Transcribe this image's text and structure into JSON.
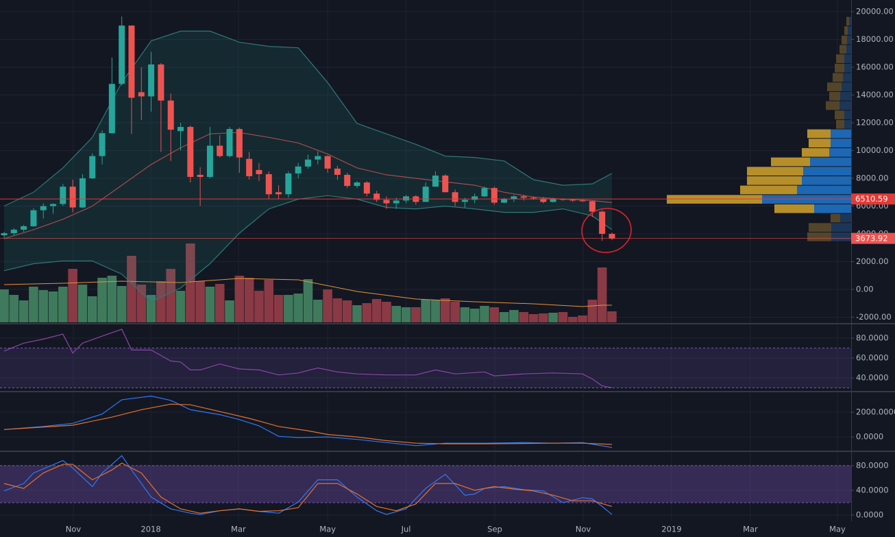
{
  "chart_data": [
    {
      "type": "candlestick",
      "x": [
        0,
        1,
        2,
        3,
        4,
        5,
        6,
        7,
        8,
        9,
        10,
        11,
        12,
        13,
        14,
        15,
        16,
        17,
        18,
        19,
        20,
        21,
        22,
        23,
        24,
        25,
        26,
        27,
        28,
        29,
        30,
        31,
        32,
        33,
        34,
        35,
        36,
        37,
        38,
        39,
        40,
        41,
        42,
        43,
        44,
        45,
        46,
        47,
        48,
        49,
        50,
        51,
        52,
        53,
        54,
        55,
        56,
        57,
        58,
        59,
        60,
        61,
        62
      ],
      "open": [
        3900,
        4050,
        4300,
        4550,
        5700,
        6000,
        6150,
        7400,
        5900,
        8000,
        9600,
        11250,
        14800,
        19000,
        14200,
        13900,
        16200,
        13600,
        11400,
        11700,
        8250,
        8100,
        10350,
        9600,
        11550,
        9400,
        8600,
        8300,
        7000,
        6850,
        8350,
        8850,
        9350,
        9600,
        8700,
        8250,
        7450,
        7700,
        6900,
        6450,
        6200,
        6400,
        6700,
        6300,
        7400,
        8200,
        7000,
        6300,
        6450,
        6700,
        7300,
        6250,
        6500,
        6700,
        6600,
        6550,
        6300,
        6500,
        6450,
        6400,
        6350,
        5600,
        4000
      ],
      "high": [
        4150,
        4400,
        4650,
        5850,
        6200,
        6200,
        7600,
        7900,
        8300,
        9800,
        11450,
        16700,
        19650,
        19000,
        16000,
        17100,
        16300,
        14100,
        12000,
        11800,
        8800,
        11700,
        11100,
        11700,
        11650,
        9900,
        9100,
        8500,
        7500,
        8500,
        9100,
        9700,
        9950,
        9650,
        8900,
        8400,
        7800,
        7800,
        7100,
        6700,
        6600,
        6800,
        6800,
        7700,
        8500,
        8300,
        7200,
        6600,
        6900,
        7400,
        7400,
        6600,
        6800,
        6800,
        6700,
        6650,
        6600,
        6550,
        6500,
        6500,
        6400,
        5700,
        4100
      ],
      "low": [
        3700,
        3900,
        4150,
        4500,
        5100,
        5450,
        6000,
        5550,
        5850,
        7950,
        9000,
        11200,
        14700,
        11200,
        12200,
        12800,
        9900,
        9250,
        10000,
        7700,
        6000,
        8000,
        9500,
        9500,
        8400,
        7900,
        7800,
        6500,
        6500,
        6600,
        8000,
        8700,
        9000,
        8400,
        7900,
        7300,
        7300,
        6700,
        6300,
        5800,
        5800,
        6200,
        6100,
        6300,
        7400,
        7000,
        6000,
        5900,
        6200,
        6650,
        6100,
        6200,
        6300,
        6400,
        6450,
        6200,
        6250,
        6400,
        6300,
        6300,
        5200,
        3500,
        3550
      ],
      "close": [
        4050,
        4300,
        4550,
        5700,
        6000,
        6150,
        7400,
        5900,
        8000,
        9600,
        11250,
        14800,
        19000,
        13800,
        13900,
        16200,
        13600,
        11500,
        11700,
        8100,
        8100,
        10350,
        9600,
        11550,
        9500,
        8150,
        8300,
        6850,
        6850,
        8350,
        8850,
        9350,
        9600,
        8700,
        8250,
        7450,
        7700,
        6900,
        6450,
        6200,
        6400,
        6700,
        6300,
        7400,
        8200,
        7000,
        6300,
        6450,
        6700,
        7300,
        6250,
        6500,
        6700,
        6600,
        6550,
        6300,
        6500,
        6450,
        6400,
        6350,
        5600,
        4000,
        3673.92
      ],
      "up_color": "#26a69a",
      "down_color": "#ef5350",
      "band_fill": "rgba(38,166,154,0.13)",
      "series": [
        {
          "color": "#2b7a78",
          "x": [
            0,
            3,
            6,
            9,
            12,
            15,
            18,
            21,
            24,
            27,
            30,
            33,
            36,
            39,
            42,
            45,
            48,
            51,
            54,
            57,
            60,
            62
          ],
          "values": [
            6000,
            7000,
            8750,
            10950,
            14900,
            17900,
            18600,
            18600,
            17800,
            17500,
            17400,
            14900,
            11950,
            11200,
            10450,
            9600,
            9500,
            9250,
            7900,
            7500,
            7600,
            8350
          ]
        },
        {
          "color": "#a84a4c",
          "x": [
            0,
            3,
            6,
            9,
            12,
            15,
            18,
            21,
            24,
            27,
            30,
            33,
            36,
            39,
            42,
            45,
            48,
            51,
            54,
            57,
            60,
            62
          ],
          "values": [
            3650,
            4300,
            5050,
            6000,
            7500,
            9000,
            10200,
            11200,
            11300,
            10950,
            10550,
            9750,
            8750,
            8250,
            8000,
            7750,
            7500,
            7000,
            6650,
            6500,
            6400,
            6250
          ]
        },
        {
          "color": "#2b7a78",
          "x": [
            0,
            3,
            6,
            9,
            12,
            15,
            18,
            21,
            24,
            27,
            30,
            33,
            36,
            39,
            42,
            45,
            48,
            51,
            54,
            57,
            60,
            62
          ],
          "values": [
            1350,
            1850,
            2050,
            2050,
            1100,
            -900,
            100,
            1850,
            4050,
            5800,
            6500,
            6750,
            6500,
            5900,
            5800,
            6000,
            5800,
            5550,
            5550,
            5800,
            5300,
            4300
          ]
        }
      ],
      "volume": {
        "lim": [
          0,
          120
        ],
        "up_color": "#3f7a5c",
        "down_color": "#8a3a45",
        "values": [
          48,
          40,
          32,
          52,
          47,
          45,
          52,
          78,
          55,
          38,
          65,
          68,
          53,
          97,
          55,
          40,
          60,
          78,
          46,
          115,
          60,
          52,
          56,
          32,
          68,
          65,
          46,
          62,
          40,
          40,
          42,
          63,
          33,
          48,
          35,
          32,
          25,
          28,
          34,
          30,
          24,
          22,
          22,
          33,
          33,
          35,
          30,
          22,
          20,
          24,
          22,
          15,
          18,
          15,
          12,
          13,
          14,
          15,
          8,
          10,
          33,
          80,
          16
        ],
        "ma": {
          "color": "#e8923a",
          "x": [
            0,
            6,
            12,
            18,
            24,
            30,
            36,
            42,
            48,
            54,
            59,
            61,
            62
          ],
          "values": [
            55,
            57,
            60,
            58,
            64,
            62,
            45,
            34,
            30,
            27,
            23,
            25,
            25
          ]
        }
      },
      "volume_profile": {
        "bins": [
          3450,
          4125,
          4800,
          5475,
          6150,
          6825,
          7500,
          8175,
          8850,
          9525,
          10200,
          10875,
          11550,
          12225,
          12900,
          13575,
          14250,
          14925,
          15600,
          16275,
          16950,
          17625,
          18300,
          18975,
          19650
        ],
        "xlim": [
          0,
          300
        ],
        "value_area": [
          5475,
          11550
        ],
        "series": [
          {
            "color": "#1f6fc0",
            "muted_color": "#1d3a5c",
            "values": [
              29,
              29,
              16,
              54,
              130,
              79,
              72,
              70,
              60,
              32,
              30,
              30,
              10,
              10,
              17,
              16,
              14,
              12,
              10,
              10,
              7,
              6,
              5,
              3
            ]
          },
          {
            "color": "#c49a2c",
            "muted_color": "#5a4a2b",
            "values": [
              35,
              33,
              14,
              58,
              139,
              83,
              80,
              82,
              57,
              40,
              32,
              34,
              12,
              14,
              20,
              16,
              21,
              15,
              14,
              12,
              10,
              8,
              5,
              4
            ]
          }
        ]
      },
      "hline": 6510.59,
      "hline_color": "#e53935",
      "xlim": [
        -0.42,
        86.4
      ],
      "xticks": [
        {
          "value": 7.06,
          "label": "Nov"
        },
        {
          "value": 14.96,
          "label": "2018"
        },
        {
          "value": 23.9,
          "label": "Mar"
        },
        {
          "value": 33.0,
          "label": "May"
        },
        {
          "value": 41.0,
          "label": "Jul"
        },
        {
          "value": 50.05,
          "label": "Sep"
        },
        {
          "value": 59.07,
          "label": "Nov"
        },
        {
          "value": 68.08,
          "label": "2019"
        },
        {
          "value": 76.12,
          "label": "Mar"
        },
        {
          "value": 85.0,
          "label": "May"
        }
      ],
      "ylim": [
        -2420,
        20840
      ],
      "yticks": [
        {
          "value": 20000,
          "label": "20000.00"
        },
        {
          "value": 18000,
          "label": "18000.00"
        },
        {
          "value": 16000,
          "label": "16000.00"
        },
        {
          "value": 14000,
          "label": "14000.00"
        },
        {
          "value": 12000,
          "label": "12000.00"
        },
        {
          "value": 10000,
          "label": "10000.00"
        },
        {
          "value": 8000,
          "label": "8000.00"
        },
        {
          "value": 6000,
          "label": "6000.00"
        },
        {
          "value": 4000,
          "label": "4000.00"
        },
        {
          "value": 2000,
          "label": "2000.00"
        },
        {
          "value": 0,
          "label": "0.00"
        },
        {
          "value": -2000,
          "label": "-2000.00"
        }
      ],
      "grid": true
    },
    {
      "type": "line",
      "band": [
        30,
        70
      ],
      "band_fill": "rgba(126,87,194,0.16)",
      "band_color": "#7e57c2",
      "series": [
        {
          "color": "#8e44ad",
          "x": [
            0,
            2,
            4,
            6,
            7,
            8,
            10,
            12,
            13,
            15,
            17,
            18,
            19,
            20,
            22,
            24,
            26,
            28,
            30,
            32,
            34,
            36,
            39,
            42,
            44,
            46,
            49,
            50,
            53,
            56,
            59,
            60,
            61,
            62
          ],
          "values": [
            67,
            75,
            79,
            84,
            65,
            75,
            82,
            89,
            68,
            68,
            57,
            56,
            48,
            48,
            54,
            49,
            48,
            43,
            45,
            50,
            46,
            44,
            43,
            43,
            48,
            44,
            46,
            42,
            44,
            45,
            44,
            39,
            32,
            30
          ]
        }
      ],
      "ylim": [
        26.9,
        93.8
      ],
      "yticks": [
        {
          "value": 80,
          "label": "80.0000"
        },
        {
          "value": 60,
          "label": "60.0000"
        },
        {
          "value": 40,
          "label": "40.0000"
        }
      ],
      "grid": true
    },
    {
      "type": "line",
      "series": [
        {
          "color": "#3179f5",
          "x": [
            0,
            4,
            7,
            10,
            12,
            15,
            17,
            19,
            22,
            24,
            26,
            28,
            30,
            33,
            36,
            39,
            42,
            45,
            49,
            53,
            56,
            59,
            62
          ],
          "values": [
            600,
            850,
            1100,
            1850,
            3000,
            3300,
            2950,
            2200,
            1800,
            1400,
            900,
            50,
            -50,
            0,
            -200,
            -450,
            -700,
            -500,
            -500,
            -450,
            -500,
            -450,
            -850
          ]
        },
        {
          "color": "#e8712a",
          "x": [
            0,
            7,
            11,
            14,
            17,
            19,
            22,
            25,
            28,
            31,
            33,
            36,
            39,
            42,
            45,
            49,
            56,
            59,
            62
          ],
          "values": [
            600,
            950,
            1600,
            2200,
            2650,
            2600,
            2050,
            1500,
            850,
            500,
            200,
            0,
            -300,
            -500,
            -550,
            -550,
            -500,
            -500,
            -600
          ]
        }
      ],
      "ylim": [
        -1100,
        3550
      ],
      "yticks": [
        {
          "value": 2000,
          "label": "2000.0000"
        },
        {
          "value": 0,
          "label": "0.0000"
        }
      ],
      "grid": true
    },
    {
      "type": "line",
      "band": [
        20,
        80
      ],
      "band_fill": "rgba(126,87,194,0.32)",
      "band_color": "#7e57c2",
      "series": [
        {
          "color": "#3179f5",
          "x": [
            0,
            2,
            3,
            6,
            7,
            9,
            10,
            12,
            13,
            15,
            17,
            19,
            20,
            22,
            24,
            26,
            28,
            30,
            32,
            34,
            36,
            38,
            39,
            41,
            43,
            45,
            47,
            48,
            49,
            51,
            53,
            55,
            57,
            59,
            60,
            61,
            62
          ],
          "values": [
            39,
            51,
            68,
            88,
            76,
            46,
            68,
            96,
            73,
            29,
            10,
            3,
            1,
            7,
            10,
            6,
            3,
            21,
            57,
            57,
            29,
            7,
            1,
            10,
            43,
            66,
            32,
            34,
            43,
            46,
            41,
            39,
            20,
            28,
            26,
            14,
            1
          ]
        },
        {
          "color": "#e8712a",
          "x": [
            0,
            2,
            4,
            6,
            7,
            9,
            11,
            12,
            14,
            16,
            18,
            20,
            22,
            24,
            26,
            28,
            30,
            32,
            34,
            36,
            38,
            40,
            42,
            44,
            46,
            48,
            50,
            52,
            54,
            56,
            58,
            60,
            62
          ],
          "values": [
            51,
            43,
            68,
            82,
            82,
            57,
            73,
            84,
            68,
            29,
            10,
            3,
            7,
            10,
            6,
            7,
            12,
            51,
            51,
            34,
            14,
            7,
            18,
            51,
            51,
            40,
            46,
            42,
            39,
            32,
            23,
            23,
            14
          ]
        }
      ],
      "ylim": [
        -10,
        102
      ],
      "yticks": [
        {
          "value": 80,
          "label": "80.0000"
        },
        {
          "value": 40,
          "label": "40.0000"
        },
        {
          "value": 0,
          "label": "0.0000"
        }
      ],
      "grid": true
    }
  ]
}
